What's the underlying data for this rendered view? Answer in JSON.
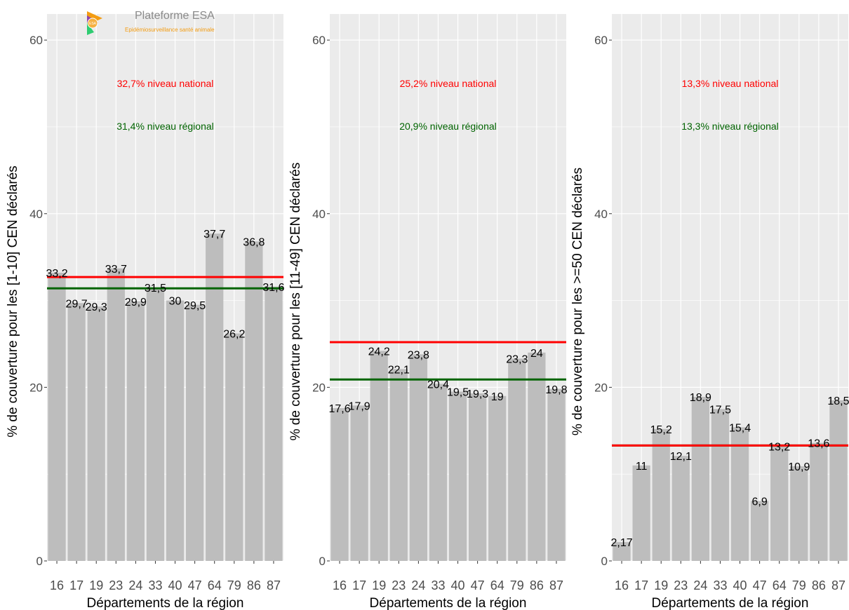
{
  "logo": {
    "title": "Plateforme ESA",
    "subtitle": "Epidémiosurveillance santé animale",
    "mark_text": "ESA"
  },
  "colors": {
    "panel_bg": "#ebebeb",
    "grid": "#ffffff",
    "bar": "#bdbdbd",
    "national": "#ff0000",
    "regional": "#006400",
    "axis_text": "#4d4d4d",
    "text": "#000000"
  },
  "chart_data": [
    {
      "type": "bar",
      "categories": [
        "16",
        "17",
        "19",
        "23",
        "24",
        "33",
        "40",
        "47",
        "64",
        "79",
        "86",
        "87"
      ],
      "values": [
        33.2,
        29.7,
        29.3,
        33.7,
        29.9,
        31.5,
        30,
        29.5,
        37.7,
        26.2,
        36.8,
        31.6
      ],
      "data_labels": [
        "33,2",
        "29,7",
        "29,3",
        "33,7",
        "29,9",
        "31,5",
        "30",
        "29,5",
        "37,7",
        "26,2",
        "36,8",
        "31,6"
      ],
      "xlabel": "Départements de la région",
      "ylabel": "% de couverture pour les [1-10] CEN déclarés",
      "ylim": [
        0,
        63
      ],
      "yticks": [
        0,
        20,
        40,
        60
      ],
      "grid": true,
      "reference_lines": [
        {
          "name": "niveau national",
          "value": 32.7,
          "label": "32,7%  niveau national",
          "color": "#ff0000"
        },
        {
          "name": "niveau régional",
          "value": 31.4,
          "label": "31,4%  niveau régional",
          "color": "#006400"
        }
      ]
    },
    {
      "type": "bar",
      "categories": [
        "16",
        "17",
        "19",
        "23",
        "24",
        "33",
        "40",
        "47",
        "64",
        "79",
        "86",
        "87"
      ],
      "values": [
        17.6,
        17.9,
        24.2,
        22.1,
        23.8,
        20.4,
        19.5,
        19.3,
        19,
        23.3,
        24,
        19.8
      ],
      "data_labels": [
        "17,6",
        "17,9",
        "24,2",
        "22,1",
        "23,8",
        "20,4",
        "19,5",
        "19,3",
        "19",
        "23,3",
        "24",
        "19,8"
      ],
      "xlabel": "Départements de la région",
      "ylabel": "% de couverture pour les [11-49] CEN déclarés",
      "ylim": [
        0,
        63
      ],
      "yticks": [
        0,
        20,
        40,
        60
      ],
      "grid": true,
      "reference_lines": [
        {
          "name": "niveau national",
          "value": 25.2,
          "label": "25,2%  niveau national",
          "color": "#ff0000"
        },
        {
          "name": "niveau régional",
          "value": 20.9,
          "label": "20,9%  niveau régional",
          "color": "#006400"
        }
      ]
    },
    {
      "type": "bar",
      "categories": [
        "16",
        "17",
        "19",
        "23",
        "24",
        "33",
        "40",
        "47",
        "64",
        "79",
        "86",
        "87"
      ],
      "values": [
        2.17,
        11,
        15.2,
        12.1,
        18.9,
        17.5,
        15.4,
        6.9,
        13.2,
        10.9,
        13.6,
        18.5
      ],
      "data_labels": [
        "2,17",
        "11",
        "15,2",
        "12,1",
        "18,9",
        "17,5",
        "15,4",
        "6,9",
        "13,2",
        "10,9",
        "13,6",
        "18,5"
      ],
      "xlabel": "Départements de la région",
      "ylabel": "% de couverture pour les >=50 CEN déclarés",
      "ylim": [
        0,
        63
      ],
      "yticks": [
        0,
        20,
        40,
        60
      ],
      "grid": true,
      "reference_lines": [
        {
          "name": "niveau national",
          "value": 13.3,
          "label": "13,3%  niveau national",
          "color": "#ff0000"
        },
        {
          "name": "niveau régional",
          "value": 13.3,
          "label": "13,3%  niveau régional",
          "color": "#006400"
        }
      ]
    }
  ]
}
